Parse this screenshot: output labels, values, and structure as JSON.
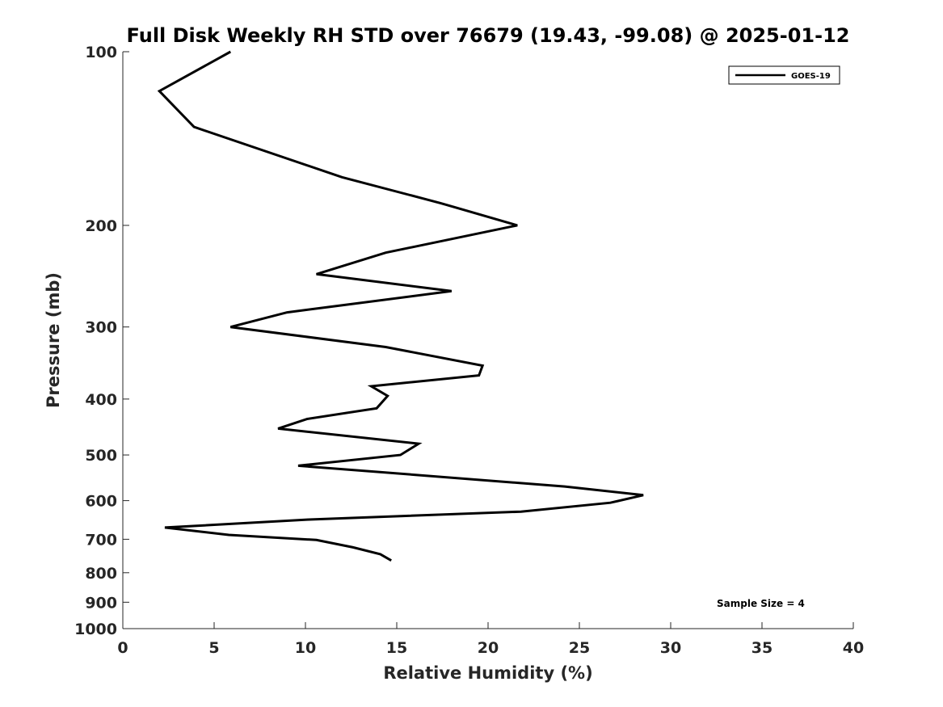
{
  "chart_data": {
    "type": "line",
    "title": "Full Disk Weekly RH STD over 76679 (19.43, -99.08) @ 2025-01-12",
    "xlabel": "Relative Humidity (%)",
    "ylabel": "Pressure (mb)",
    "xlim": [
      0,
      40
    ],
    "ylim": [
      100,
      1000
    ],
    "y_scale": "log",
    "y_reversed": true,
    "x_ticks": [
      "0",
      "5",
      "10",
      "15",
      "20",
      "25",
      "30",
      "35",
      "40"
    ],
    "y_ticks": [
      "100",
      "200",
      "300",
      "400",
      "500",
      "600",
      "700",
      "800",
      "900",
      "1000"
    ],
    "grid": false,
    "legend_position": "top-right",
    "annotation": "Sample Size = 4",
    "series": [
      {
        "name": "GOES-19",
        "color": "#000000",
        "x": [
          5.9,
          2.0,
          3.9,
          12.0,
          17.4,
          21.6,
          14.4,
          10.6,
          18.0,
          9.0,
          5.9,
          14.4,
          19.7,
          19.5,
          13.6,
          14.5,
          13.9,
          10.1,
          8.5,
          16.2,
          15.2,
          9.6,
          24.2,
          28.5,
          26.7,
          21.8,
          10.2,
          2.3,
          5.8,
          10.6,
          12.6,
          14.1,
          14.7
        ],
        "y": [
          100,
          117,
          135,
          165,
          183,
          200,
          223,
          243,
          260,
          283,
          300,
          325,
          350,
          364,
          380,
          395,
          415,
          433,
          450,
          478,
          500,
          522,
          567,
          587,
          605,
          627,
          647,
          668,
          688,
          702,
          723,
          743,
          762
        ]
      }
    ]
  }
}
